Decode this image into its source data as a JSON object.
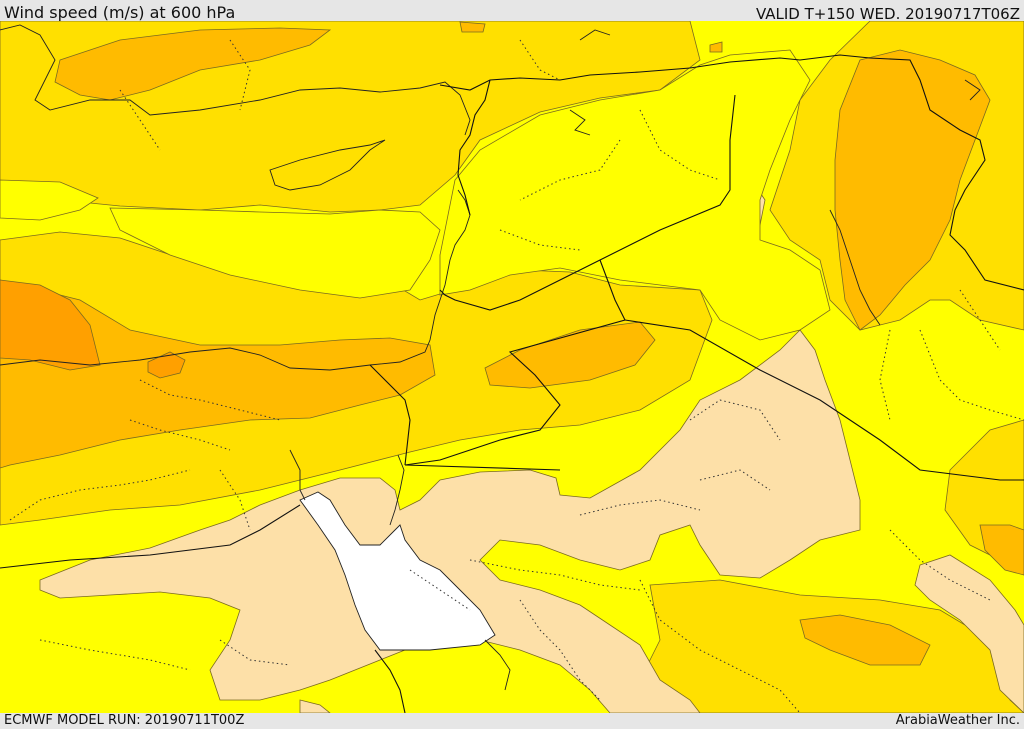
{
  "header": {
    "title": "Wind speed (m/s) at 600 hPa",
    "valid": "VALID T+150 WED. 20190717T06Z"
  },
  "footer": {
    "model_run": "ECMWF MODEL RUN: 20190711T00Z",
    "credit": "ArabiaWeather Inc."
  },
  "colors": {
    "background": "#e6e6e6",
    "band_pale": "#fde0a8",
    "band_yellow": "#ffff00",
    "band_gold": "#ffe000",
    "band_orange": "#ffbb00",
    "band_dark_orange": "#ffa000",
    "sea": "#ffffff"
  }
}
